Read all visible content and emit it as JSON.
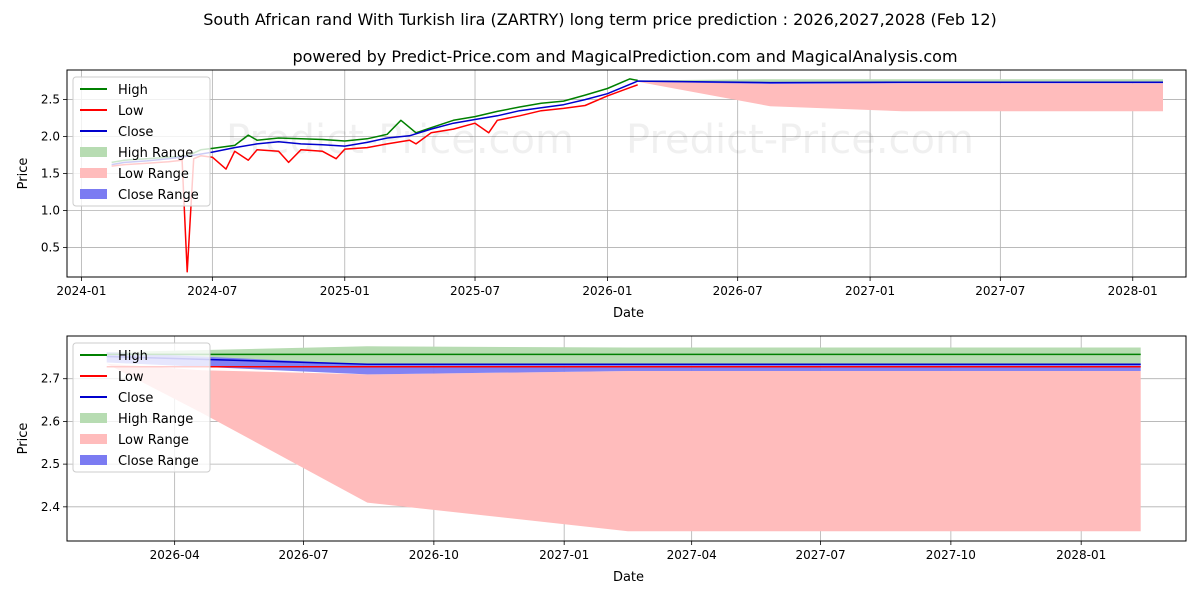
{
  "title": "South African rand With Turkish lira (ZARTRY) long term price prediction : 2026,2027,2028 (Feb 12)",
  "subtitle": "powered by Predict-Price.com and MagicalPrediction.com and MagicalAnalysis.com",
  "watermark": "Predict-Price.com",
  "colors": {
    "high": "#008000",
    "low": "#ff0000",
    "close": "#0000cd",
    "high_range": "#b7dcb2",
    "low_range": "#ffbcbc",
    "close_range": "#7b7bf2",
    "grid": "#b0b0b0"
  },
  "chart_data": [
    {
      "type": "line",
      "panel": "top",
      "xlabel": "Date",
      "ylabel": "Price",
      "xlim": [
        "2023-12-12",
        "2028-03-15"
      ],
      "ylim": [
        0.1,
        2.9
      ],
      "x_ticks": [
        {
          "date": "2024-01-01",
          "label": "2024-01"
        },
        {
          "date": "2024-07-01",
          "label": "2024-07"
        },
        {
          "date": "2025-01-01",
          "label": "2025-01"
        },
        {
          "date": "2025-07-01",
          "label": "2025-07"
        },
        {
          "date": "2026-01-01",
          "label": "2026-01"
        },
        {
          "date": "2026-07-01",
          "label": "2026-07"
        },
        {
          "date": "2027-01-01",
          "label": "2027-01"
        },
        {
          "date": "2027-07-01",
          "label": "2027-07"
        },
        {
          "date": "2028-01-01",
          "label": "2028-01"
        }
      ],
      "y_ticks": [
        {
          "value": 0.5,
          "label": "0.5"
        },
        {
          "value": 1.0,
          "label": "1.0"
        },
        {
          "value": 1.5,
          "label": "1.5"
        },
        {
          "value": 2.0,
          "label": "2.0"
        },
        {
          "value": 2.5,
          "label": "2.5"
        }
      ],
      "legend": [
        "High",
        "Low",
        "Close",
        "High Range",
        "Low Range",
        "Close Range"
      ],
      "legend_position": "upper-left",
      "series": [
        {
          "name": "High",
          "x": [
            "2024-02-12",
            "2024-03-01",
            "2024-04-01",
            "2024-05-01",
            "2024-05-25",
            "2024-06-01",
            "2024-06-15",
            "2024-07-01",
            "2024-08-01",
            "2024-08-20",
            "2024-09-01",
            "2024-10-01",
            "2024-11-01",
            "2024-12-01",
            "2025-01-01",
            "2025-02-01",
            "2025-03-01",
            "2025-03-20",
            "2025-04-10",
            "2025-05-01",
            "2025-06-01",
            "2025-07-01",
            "2025-08-01",
            "2025-09-01",
            "2025-10-01",
            "2025-11-01",
            "2025-12-01",
            "2026-01-01",
            "2026-02-01",
            "2026-02-12"
          ],
          "values": [
            1.65,
            1.68,
            1.7,
            1.72,
            1.74,
            1.76,
            1.82,
            1.84,
            1.88,
            2.02,
            1.95,
            1.98,
            1.97,
            1.96,
            1.94,
            1.97,
            2.03,
            2.22,
            2.05,
            2.12,
            2.22,
            2.27,
            2.34,
            2.4,
            2.45,
            2.48,
            2.56,
            2.65,
            2.78,
            2.76
          ]
        },
        {
          "name": "Low",
          "x": [
            "2024-02-12",
            "2024-03-01",
            "2024-04-01",
            "2024-05-01",
            "2024-05-20",
            "2024-05-27",
            "2024-06-05",
            "2024-06-15",
            "2024-07-01",
            "2024-07-20",
            "2024-08-01",
            "2024-08-20",
            "2024-09-01",
            "2024-10-01",
            "2024-10-15",
            "2024-11-01",
            "2024-12-01",
            "2024-12-20",
            "2025-01-01",
            "2025-02-01",
            "2025-03-01",
            "2025-04-01",
            "2025-04-10",
            "2025-05-01",
            "2025-06-01",
            "2025-07-01",
            "2025-07-20",
            "2025-08-01",
            "2025-09-01",
            "2025-10-01",
            "2025-11-01",
            "2025-12-01",
            "2026-01-01",
            "2026-02-01",
            "2026-02-12"
          ],
          "values": [
            1.6,
            1.62,
            1.64,
            1.66,
            1.68,
            0.17,
            1.7,
            1.74,
            1.72,
            1.56,
            1.8,
            1.68,
            1.82,
            1.8,
            1.65,
            1.82,
            1.8,
            1.7,
            1.83,
            1.85,
            1.9,
            1.95,
            1.9,
            2.05,
            2.1,
            2.18,
            2.05,
            2.22,
            2.28,
            2.35,
            2.38,
            2.42,
            2.55,
            2.66,
            2.7
          ]
        },
        {
          "name": "Close",
          "x": [
            "2024-02-12",
            "2024-03-01",
            "2024-04-01",
            "2024-05-01",
            "2024-06-01",
            "2024-07-01",
            "2024-08-01",
            "2024-09-01",
            "2024-10-01",
            "2024-11-01",
            "2024-12-01",
            "2025-01-01",
            "2025-02-01",
            "2025-03-01",
            "2025-04-01",
            "2025-05-01",
            "2025-06-01",
            "2025-07-01",
            "2025-08-01",
            "2025-09-01",
            "2025-10-01",
            "2025-11-01",
            "2025-12-01",
            "2026-01-01",
            "2026-02-12",
            "2026-08-15",
            "2027-02-15",
            "2028-02-12"
          ],
          "values": [
            1.62,
            1.65,
            1.67,
            1.7,
            1.74,
            1.79,
            1.85,
            1.9,
            1.93,
            1.9,
            1.89,
            1.87,
            1.92,
            1.98,
            2.01,
            2.1,
            2.18,
            2.23,
            2.28,
            2.35,
            2.39,
            2.43,
            2.5,
            2.58,
            2.75,
            2.73,
            2.735,
            2.735
          ]
        }
      ],
      "ranges": [
        {
          "name": "High Range",
          "x": [
            "2026-02-12",
            "2026-08-15",
            "2027-02-15",
            "2028-02-12"
          ],
          "lower": [
            2.75,
            2.73,
            2.735,
            2.735
          ],
          "upper": [
            2.76,
            2.775,
            2.775,
            2.775
          ]
        },
        {
          "name": "Low Range",
          "x": [
            "2026-02-12",
            "2026-08-15",
            "2027-02-15",
            "2028-02-12"
          ],
          "lower": [
            2.74,
            2.41,
            2.343,
            2.343
          ],
          "upper": [
            2.76,
            2.71,
            2.72,
            2.72
          ]
        },
        {
          "name": "Close Range",
          "x": [
            "2026-02-12",
            "2026-08-15",
            "2027-02-15",
            "2028-02-12"
          ],
          "lower": [
            2.74,
            2.71,
            2.72,
            2.72
          ],
          "upper": [
            2.76,
            2.735,
            2.735,
            2.735
          ]
        }
      ]
    },
    {
      "type": "line",
      "panel": "bottom",
      "xlabel": "Date",
      "ylabel": "Price",
      "xlim": [
        "2026-01-15",
        "2028-03-15"
      ],
      "ylim": [
        2.32,
        2.8
      ],
      "x_ticks": [
        {
          "date": "2026-04-01",
          "label": "2026-04"
        },
        {
          "date": "2026-07-01",
          "label": "2026-07"
        },
        {
          "date": "2026-10-01",
          "label": "2026-10"
        },
        {
          "date": "2027-01-01",
          "label": "2027-01"
        },
        {
          "date": "2027-04-01",
          "label": "2027-04"
        },
        {
          "date": "2027-07-01",
          "label": "2027-07"
        },
        {
          "date": "2027-10-01",
          "label": "2027-10"
        },
        {
          "date": "2028-01-01",
          "label": "2028-01"
        }
      ],
      "y_ticks": [
        {
          "value": 2.4,
          "label": "2.4"
        },
        {
          "value": 2.5,
          "label": "2.5"
        },
        {
          "value": 2.6,
          "label": "2.6"
        },
        {
          "value": 2.7,
          "label": "2.7"
        }
      ],
      "legend": [
        "High",
        "Low",
        "Close",
        "High Range",
        "Low Range",
        "Close Range"
      ],
      "legend_position": "upper-left",
      "series": [
        {
          "name": "High",
          "x": [
            "2026-02-12",
            "2028-02-12"
          ],
          "values": [
            2.757,
            2.757
          ]
        },
        {
          "name": "Low",
          "x": [
            "2026-02-12",
            "2028-02-12"
          ],
          "values": [
            2.728,
            2.728
          ]
        },
        {
          "name": "Close",
          "x": [
            "2026-02-12",
            "2026-08-15",
            "2027-02-15",
            "2028-02-12"
          ],
          "values": [
            2.752,
            2.734,
            2.734,
            2.734
          ]
        }
      ],
      "ranges": [
        {
          "name": "High Range",
          "x": [
            "2026-02-12",
            "2026-08-15",
            "2027-02-15",
            "2028-02-12"
          ],
          "lower": [
            2.752,
            2.734,
            2.734,
            2.734
          ],
          "upper": [
            2.762,
            2.776,
            2.773,
            2.773
          ]
        },
        {
          "name": "Low Range",
          "x": [
            "2026-02-12",
            "2026-04-20",
            "2026-08-15",
            "2027-02-15",
            "2028-02-12"
          ],
          "lower": [
            2.735,
            2.62,
            2.41,
            2.343,
            2.343
          ],
          "upper": [
            2.735,
            2.72,
            2.71,
            2.718,
            2.718
          ]
        },
        {
          "name": "Close Range",
          "x": [
            "2026-02-12",
            "2026-08-15",
            "2027-02-15",
            "2028-02-12"
          ],
          "lower": [
            2.738,
            2.71,
            2.718,
            2.718
          ],
          "upper": [
            2.762,
            2.734,
            2.734,
            2.734
          ]
        }
      ]
    }
  ]
}
